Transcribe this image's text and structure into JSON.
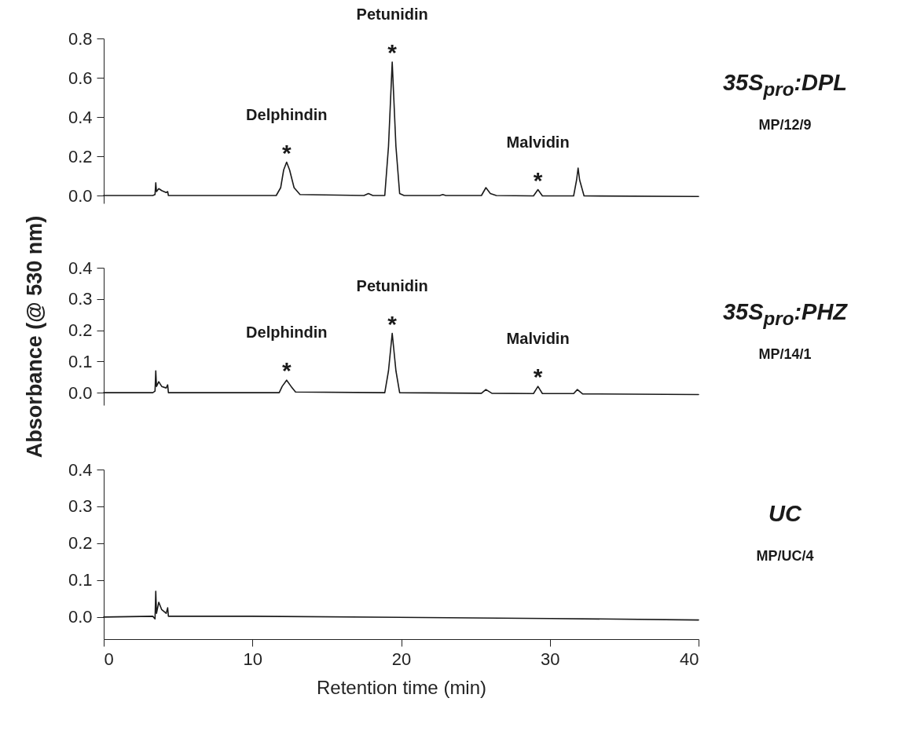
{
  "chart_data": [
    {
      "type": "line",
      "ylim": [
        -0.04,
        0.8
      ],
      "xlim": [
        0,
        40
      ],
      "tick_labels": "y",
      "yticks": [
        {
          "value": 0,
          "label": "0.0"
        },
        {
          "value": 0.2,
          "label": "0.2"
        },
        {
          "value": 0.4,
          "label": "0.4"
        },
        {
          "value": 0.6,
          "label": "0.6"
        },
        {
          "value": 0.8,
          "label": "0.8"
        }
      ],
      "series": [
        {
          "color": "#1a1a1a",
          "x": [
            0,
            3.3,
            3.45,
            3.5,
            3.55,
            3.7,
            3.9,
            4.2,
            4.3,
            4.35,
            11.6,
            11.9,
            12.1,
            12.3,
            12.5,
            12.8,
            13.2,
            17.5,
            17.8,
            18.1,
            18.9,
            19.15,
            19.4,
            19.65,
            19.9,
            20.2,
            22.6,
            22.8,
            23,
            25.4,
            25.7,
            26,
            26.4,
            28.9,
            29.2,
            29.5,
            31.6,
            31.8,
            31.9,
            32,
            32.3,
            40
          ],
          "values": [
            0,
            0,
            0.005,
            0.065,
            0.02,
            0.035,
            0.025,
            0.015,
            0.02,
            0,
            0,
            0.04,
            0.13,
            0.17,
            0.13,
            0.04,
            0.005,
            0,
            0.01,
            0,
            0,
            0.25,
            0.68,
            0.25,
            0.01,
            0,
            0,
            0.005,
            0,
            0,
            0.04,
            0.01,
            0,
            -0.002,
            0.03,
            -0.002,
            -0.002,
            0.08,
            0.14,
            0.08,
            -0.002,
            -0.005
          ]
        }
      ],
      "annotations": [
        {
          "text": "*",
          "x": 12.3,
          "y": 0.17
        },
        {
          "text": "Delphindin",
          "x": 12.3,
          "y": 0.17
        },
        {
          "text": "*",
          "x": 19.4,
          "y": 0.68
        },
        {
          "text": "Petunidin",
          "x": 19.4,
          "y": 0.68
        },
        {
          "text": "*",
          "x": 29.2,
          "y": 0.03
        },
        {
          "text": "Malvidin",
          "x": 29.2,
          "y": 0.03
        },
        "35S$_{pro}$:DPL",
        "MP/12/9"
      ]
    },
    {
      "type": "line",
      "ylim": [
        -0.04,
        0.4
      ],
      "xlim": [
        0,
        40
      ],
      "tick_labels": "y",
      "ylabel": "Absorbance (@ 530 nm)",
      "yticks": [
        {
          "value": 0,
          "label": "0.0"
        },
        {
          "value": 0.1,
          "label": "0.1"
        },
        {
          "value": 0.2,
          "label": "0.2"
        },
        {
          "value": 0.3,
          "label": "0.3"
        },
        {
          "value": 0.4,
          "label": "0.4"
        }
      ],
      "series": [
        {
          "color": "#1a1a1a",
          "x": [
            0,
            3.3,
            3.45,
            3.5,
            3.55,
            3.7,
            3.9,
            4.2,
            4.3,
            4.35,
            11.8,
            12,
            12.3,
            12.6,
            12.9,
            18.9,
            19.15,
            19.4,
            19.65,
            19.9,
            25.4,
            25.7,
            26.1,
            28.9,
            29.2,
            29.5,
            31.6,
            31.85,
            32.2,
            40
          ],
          "values": [
            0,
            0,
            0.005,
            0.07,
            0.02,
            0.035,
            0.02,
            0.015,
            0.025,
            0,
            0,
            0.02,
            0.04,
            0.02,
            0.002,
            0,
            0.07,
            0.19,
            0.07,
            0,
            -0.002,
            0.01,
            -0.002,
            -0.003,
            0.02,
            -0.003,
            -0.003,
            0.01,
            -0.004,
            -0.006
          ]
        }
      ],
      "annotations": [
        {
          "text": "*",
          "x": 12.3,
          "y": 0.04
        },
        {
          "text": "Delphindin",
          "x": 12.3,
          "y": 0.04
        },
        {
          "text": "*",
          "x": 19.4,
          "y": 0.19
        },
        {
          "text": "Petunidin",
          "x": 19.4,
          "y": 0.19
        },
        {
          "text": "*",
          "x": 29.2,
          "y": 0.02
        },
        {
          "text": "Malvidin",
          "x": 29.2,
          "y": 0.02
        },
        "35S$_{pro}$:PHZ",
        "MP/14/1"
      ]
    },
    {
      "type": "line",
      "ylim": [
        -0.06,
        0.4
      ],
      "xlim": [
        0,
        40
      ],
      "xlabel": "Retention time (min)",
      "xticks": [
        0,
        10,
        20,
        30,
        40
      ],
      "yticks": [
        {
          "value": 0,
          "label": "0.0"
        },
        {
          "value": 0.1,
          "label": "0.1"
        },
        {
          "value": 0.2,
          "label": "0.2"
        },
        {
          "value": 0.3,
          "label": "0.3"
        },
        {
          "value": 0.4,
          "label": "0.4"
        }
      ],
      "series": [
        {
          "color": "#1a1a1a",
          "x": [
            0,
            3.3,
            3.45,
            3.5,
            3.55,
            3.7,
            3.9,
            4.2,
            4.3,
            4.35,
            10,
            30,
            40
          ],
          "values": [
            0,
            0.002,
            -0.005,
            0.07,
            0.01,
            0.04,
            0.02,
            0.01,
            0.025,
            0.002,
            0.002,
            -0.004,
            -0.008
          ]
        }
      ],
      "annotations": [
        "UC",
        "MP/UC/4"
      ]
    }
  ]
}
